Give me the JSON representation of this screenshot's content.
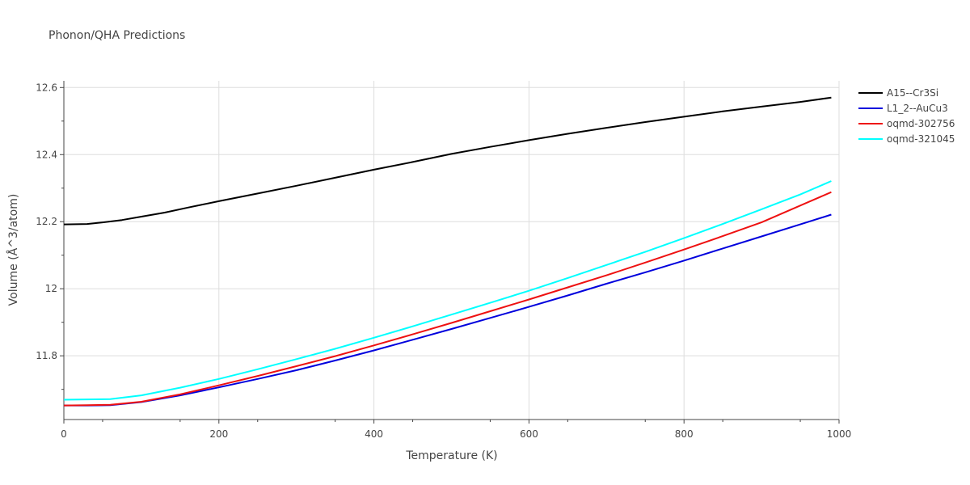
{
  "chart_data": {
    "type": "line",
    "title": "Phonon/QHA Predictions",
    "xlabel": "Temperature (K)",
    "ylabel": "Volume (Å^3/atom)",
    "xlim": [
      0,
      1000
    ],
    "ylim": [
      11.61,
      12.62
    ],
    "xticks": [
      0,
      200,
      400,
      600,
      800,
      1000
    ],
    "yticks": [
      11.8,
      12,
      12.2,
      12.4,
      12.6
    ],
    "ytick_labels": [
      "11.8",
      "12",
      "12.2",
      "12.4",
      "12.6"
    ],
    "grid": true,
    "legend_position": "top-right",
    "series": [
      {
        "name": "A15--Cr3Si",
        "color": "#000000",
        "x": [
          0,
          30,
          50,
          75,
          100,
          130,
          160,
          200,
          250,
          300,
          350,
          400,
          450,
          500,
          550,
          600,
          650,
          700,
          750,
          800,
          850,
          900,
          950,
          990
        ],
        "y": [
          12.192,
          12.193,
          12.198,
          12.205,
          12.215,
          12.227,
          12.242,
          12.261,
          12.284,
          12.307,
          12.331,
          12.355,
          12.378,
          12.402,
          12.423,
          12.443,
          12.462,
          12.48,
          12.497,
          12.513,
          12.529,
          12.543,
          12.557,
          12.57
        ]
      },
      {
        "name": "L1_2--AuCu3",
        "color": "#0000dd",
        "x": [
          0,
          30,
          60,
          100,
          150,
          200,
          250,
          300,
          350,
          400,
          450,
          500,
          550,
          600,
          650,
          700,
          750,
          800,
          850,
          900,
          950,
          990
        ],
        "y": [
          11.652,
          11.652,
          11.653,
          11.662,
          11.682,
          11.706,
          11.731,
          11.757,
          11.786,
          11.816,
          11.848,
          11.88,
          11.913,
          11.946,
          11.98,
          12.015,
          12.049,
          12.084,
          12.12,
          12.156,
          12.192,
          12.221
        ]
      },
      {
        "name": "oqmd-302756",
        "color": "#ee1111",
        "x": [
          0,
          30,
          60,
          100,
          150,
          200,
          250,
          300,
          350,
          400,
          450,
          500,
          550,
          600,
          650,
          700,
          750,
          800,
          850,
          900,
          950,
          990
        ],
        "y": [
          11.652,
          11.653,
          11.654,
          11.663,
          11.685,
          11.712,
          11.74,
          11.769,
          11.799,
          11.831,
          11.864,
          11.898,
          11.933,
          11.968,
          12.004,
          12.04,
          12.078,
          12.117,
          12.157,
          12.198,
          12.248,
          12.288
        ]
      },
      {
        "name": "oqmd-321045",
        "color": "#00ffff",
        "x": [
          0,
          30,
          60,
          100,
          150,
          200,
          250,
          300,
          350,
          400,
          450,
          500,
          550,
          600,
          650,
          700,
          750,
          800,
          850,
          900,
          950,
          990
        ],
        "y": [
          11.669,
          11.67,
          11.671,
          11.682,
          11.705,
          11.731,
          11.76,
          11.79,
          11.821,
          11.854,
          11.888,
          11.923,
          11.958,
          11.994,
          12.032,
          12.071,
          12.11,
          12.151,
          12.193,
          12.237,
          12.281,
          12.321
        ]
      }
    ]
  }
}
